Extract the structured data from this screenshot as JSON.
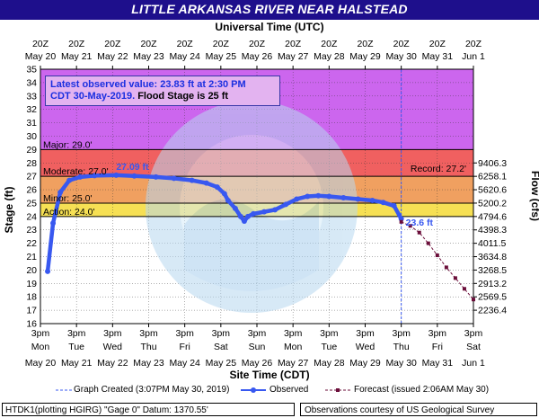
{
  "title": "LITTLE ARKANSAS RIVER NEAR HALSTEAD",
  "top_axis_title": "Universal Time (UTC)",
  "bottom_axis_title": "Site Time (CDT)",
  "latest": {
    "line1": "Latest observed value: 23.83 ft at 2:30 PM",
    "line2_date": "CDT 30-May-2019.",
    "line2_flood": " Flood Stage is 25 ft"
  },
  "legend": {
    "graph_created": "Graph Created (3:07PM May 30, 2019)",
    "observed": "Observed",
    "forecast": "Forecast (issued 2:06AM May 30)"
  },
  "footer": {
    "left": "HTDK1(plotting HGIRG) \"Gage 0\" Datum: 1370.55'",
    "right": "Observations courtesy of US Geological Survey"
  },
  "colors": {
    "title_bg": "#1e0f8c",
    "record_band": "#cc66ee",
    "major_band": "#f06060",
    "moderate_band": "#f0a060",
    "minor_band": "#f6e054",
    "observed": "#3858f0",
    "forecast": "#6b0e3a"
  },
  "chart_data": {
    "type": "line",
    "title": "LITTLE ARKANSAS RIVER NEAR HALSTEAD",
    "ylabel_left": "Stage (ft)",
    "ylabel_right": "Flow (cfs)",
    "ylim": [
      16,
      35
    ],
    "y_ticks": [
      16,
      17,
      18,
      19,
      20,
      21,
      22,
      23,
      24,
      25,
      26,
      27,
      28,
      29,
      30,
      31,
      32,
      33,
      34,
      35
    ],
    "x_domain_days": [
      0,
      12
    ],
    "bottom_ticks": [
      {
        "day": 0,
        "time": "3pm",
        "wd": "Mon",
        "date": "May 20"
      },
      {
        "day": 1,
        "time": "3pm",
        "wd": "Tue",
        "date": "May 21"
      },
      {
        "day": 2,
        "time": "3pm",
        "wd": "Wed",
        "date": "May 22"
      },
      {
        "day": 3,
        "time": "3pm",
        "wd": "Thu",
        "date": "May 23"
      },
      {
        "day": 4,
        "time": "3pm",
        "wd": "Fri",
        "date": "May 24"
      },
      {
        "day": 5,
        "time": "3pm",
        "wd": "Sat",
        "date": "May 25"
      },
      {
        "day": 6,
        "time": "3pm",
        "wd": "Sun",
        "date": "May 26"
      },
      {
        "day": 7,
        "time": "3pm",
        "wd": "Mon",
        "date": "May 27"
      },
      {
        "day": 8,
        "time": "3pm",
        "wd": "Tue",
        "date": "May 28"
      },
      {
        "day": 9,
        "time": "3pm",
        "wd": "Wed",
        "date": "May 29"
      },
      {
        "day": 10,
        "time": "3pm",
        "wd": "Thu",
        "date": "May 30"
      },
      {
        "day": 11,
        "time": "3pm",
        "wd": "Fri",
        "date": "May 31"
      },
      {
        "day": 12,
        "time": "3pm",
        "wd": "Sat",
        "date": "Jun 1"
      }
    ],
    "top_ticks": [
      {
        "day": 0,
        "time": "20Z",
        "date": "May 20"
      },
      {
        "day": 1,
        "time": "20Z",
        "date": "May 21"
      },
      {
        "day": 2,
        "time": "20Z",
        "date": "May 22"
      },
      {
        "day": 3,
        "time": "20Z",
        "date": "May 23"
      },
      {
        "day": 4,
        "time": "20Z",
        "date": "May 24"
      },
      {
        "day": 5,
        "time": "20Z",
        "date": "May 25"
      },
      {
        "day": 6,
        "time": "20Z",
        "date": "May 26"
      },
      {
        "day": 7,
        "time": "20Z",
        "date": "May 27"
      },
      {
        "day": 8,
        "time": "20Z",
        "date": "May 28"
      },
      {
        "day": 9,
        "time": "20Z",
        "date": "May 29"
      },
      {
        "day": 10,
        "time": "20Z",
        "date": "May 30"
      },
      {
        "day": 11,
        "time": "20Z",
        "date": "May 31"
      },
      {
        "day": 12,
        "time": "20Z",
        "date": "Jun 1"
      }
    ],
    "flow_ticks": [
      {
        "stage": 17,
        "label": "2236.4"
      },
      {
        "stage": 18,
        "label": "2569.5"
      },
      {
        "stage": 19,
        "label": "2913.2"
      },
      {
        "stage": 20,
        "label": "3268.5"
      },
      {
        "stage": 21,
        "label": "3634.8"
      },
      {
        "stage": 22,
        "label": "4011.5"
      },
      {
        "stage": 23,
        "label": "4398.3"
      },
      {
        "stage": 24,
        "label": "4794.6"
      },
      {
        "stage": 25,
        "label": "5200.2"
      },
      {
        "stage": 26,
        "label": "5620.6"
      },
      {
        "stage": 27,
        "label": "6258.1"
      },
      {
        "stage": 28,
        "label": "9406.3"
      }
    ],
    "flood_categories": [
      {
        "name": "Action",
        "label": "Action: 24.0'",
        "stage": 24.0
      },
      {
        "name": "Minor",
        "label": "Minor: 25.0'",
        "stage": 25.0
      },
      {
        "name": "Moderate",
        "label": "Moderate: 27.0'",
        "stage": 27.0
      },
      {
        "name": "Major",
        "label": "Major: 29.0'",
        "stage": 29.0
      }
    ],
    "record_label": "Record: 27.2'",
    "annotations": [
      {
        "text": "27.09 ft",
        "day": 2.1,
        "stage": 27.09
      },
      {
        "text": "23.6 ft",
        "day": 10.0,
        "stage": 23.6
      }
    ],
    "observed": {
      "name": "Observed",
      "x_days": [
        0.2,
        0.35,
        0.55,
        0.8,
        1.1,
        1.5,
        2.1,
        2.6,
        3.2,
        3.7,
        4.2,
        4.6,
        4.9,
        5.1,
        5.2,
        5.4,
        5.55,
        5.65,
        5.75,
        5.9,
        6.2,
        6.5,
        6.8,
        7.1,
        7.4,
        7.7,
        8.0,
        8.4,
        8.8,
        9.2,
        9.5,
        9.8,
        10.0
      ],
      "stage": [
        19.9,
        23.5,
        25.8,
        26.7,
        26.95,
        27.05,
        27.09,
        27.03,
        26.95,
        26.85,
        26.7,
        26.5,
        26.2,
        25.7,
        25.2,
        24.6,
        24.0,
        23.65,
        24.0,
        24.2,
        24.35,
        24.5,
        24.9,
        25.3,
        25.5,
        25.55,
        25.5,
        25.4,
        25.3,
        25.2,
        25.05,
        24.8,
        23.83
      ]
    },
    "forecast": {
      "name": "Forecast",
      "x_days": [
        10.0,
        10.25,
        10.5,
        10.75,
        11.0,
        11.25,
        11.5,
        11.75,
        12.0
      ],
      "stage": [
        23.6,
        23.3,
        22.8,
        22.0,
        21.1,
        20.2,
        19.4,
        18.6,
        17.8
      ]
    },
    "graph_created_day": 10.0
  }
}
